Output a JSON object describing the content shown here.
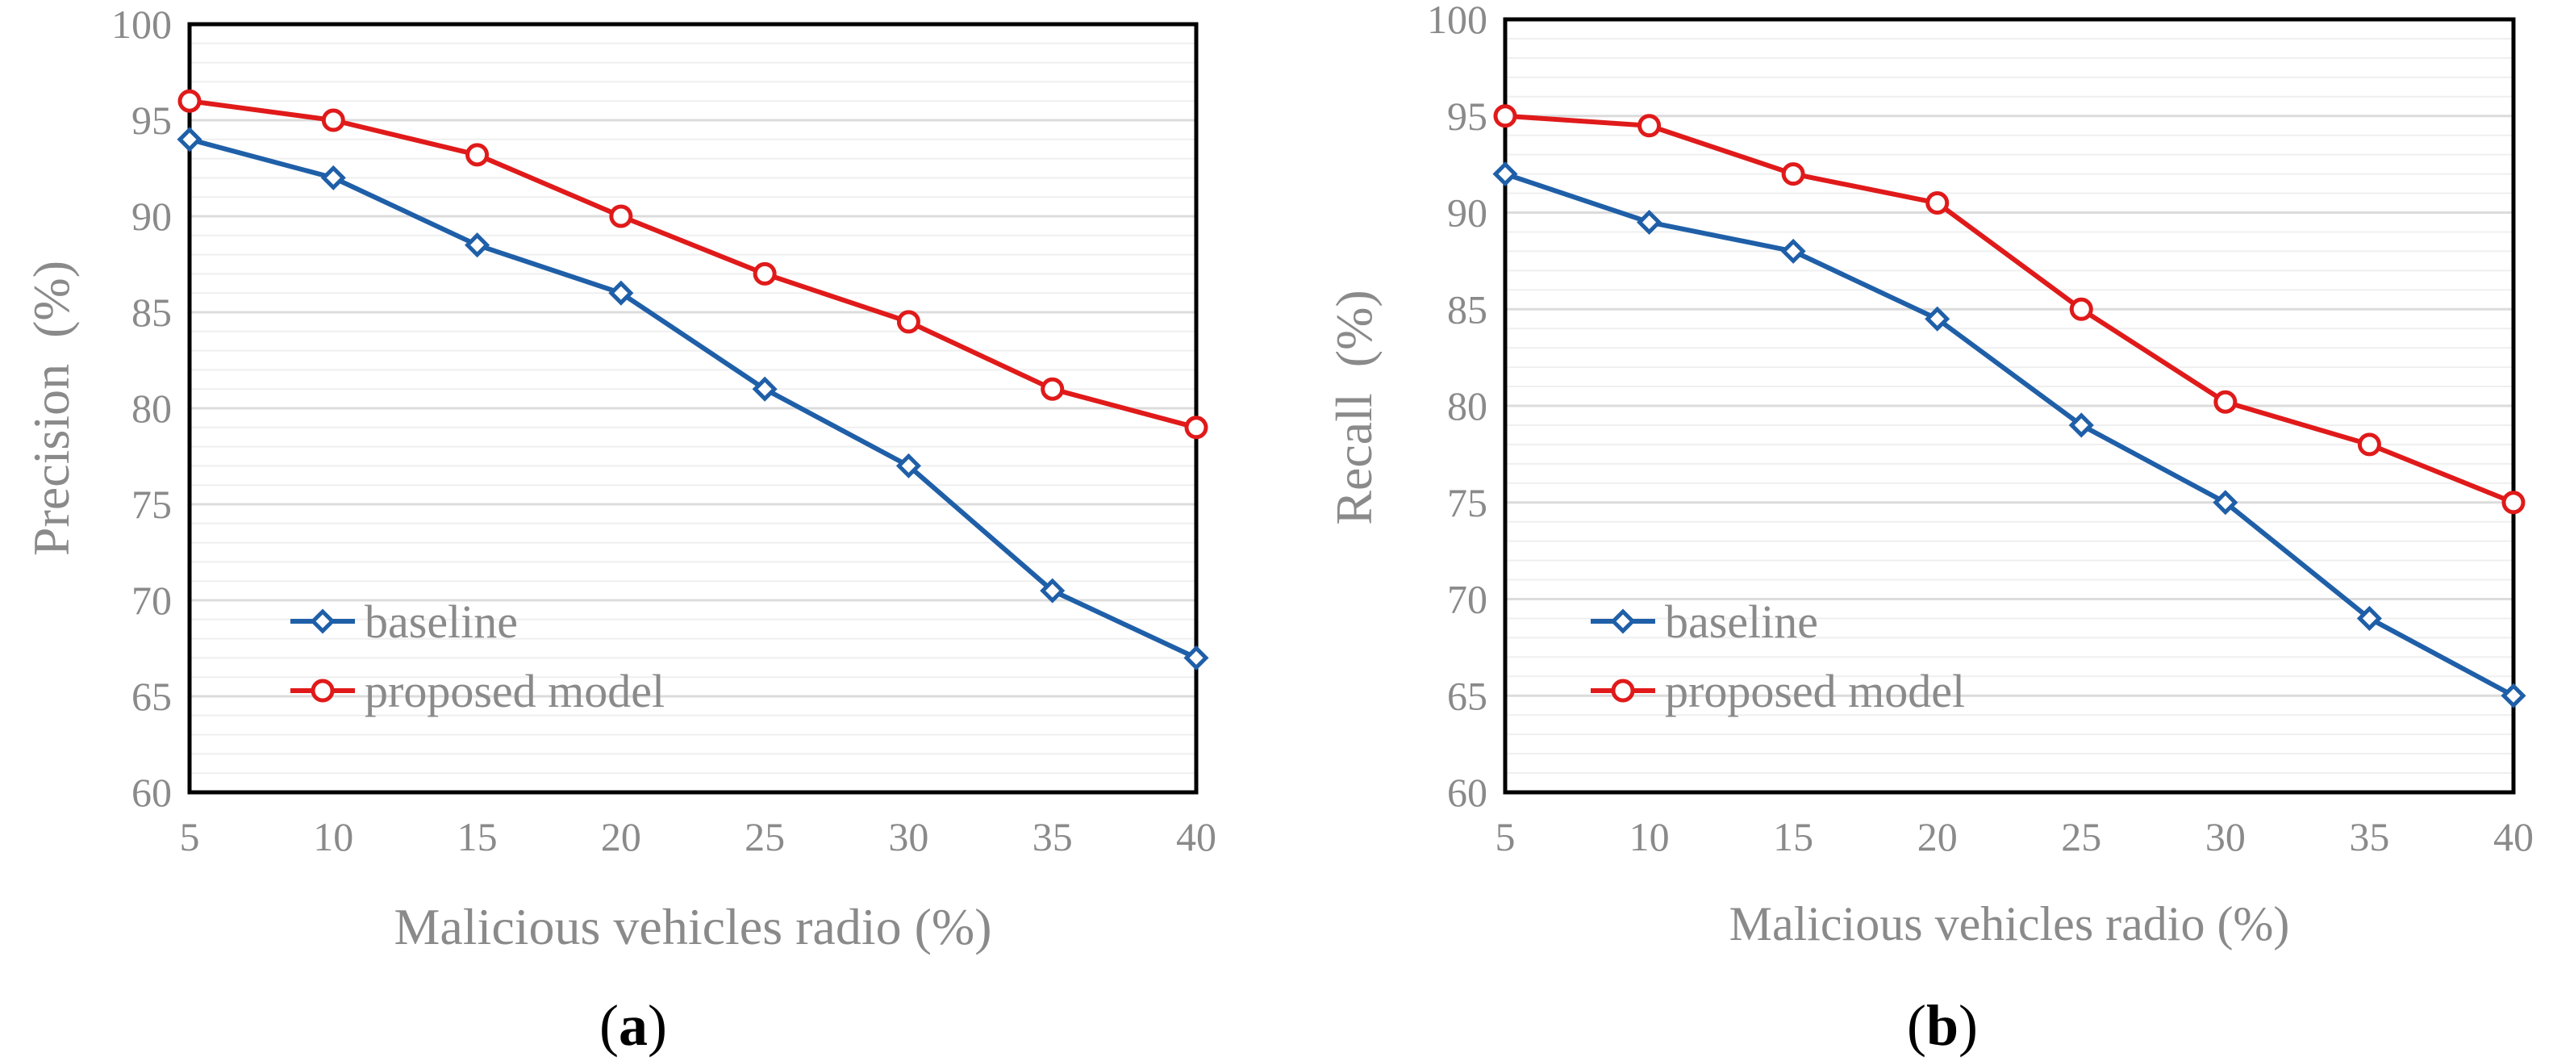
{
  "chart_data": [
    {
      "type": "line",
      "panel": "a",
      "x": [
        5,
        10,
        15,
        20,
        25,
        30,
        35,
        40
      ],
      "series": [
        {
          "name": "baseline",
          "values": [
            94,
            92,
            88.5,
            86,
            81,
            77,
            70.5,
            67
          ],
          "color": "#1f5fa8",
          "marker": "diamond"
        },
        {
          "name": "proposed model",
          "values": [
            96,
            95,
            93.2,
            90,
            87,
            84.5,
            81,
            79
          ],
          "color": "#e01a1a",
          "marker": "circle"
        }
      ],
      "xlabel": "Malicious vehicles radio (%)",
      "ylabel": "Precision  (%)",
      "xlim": [
        5,
        40
      ],
      "ylim": [
        60,
        100
      ],
      "xticks": [
        "5",
        "10",
        "15",
        "20",
        "25",
        "30",
        "35",
        "40"
      ],
      "yticks": [
        "60",
        "65",
        "70",
        "75",
        "80",
        "85",
        "90",
        "95",
        "100"
      ],
      "grid": true,
      "legend": "lower-left",
      "caption_open": "(",
      "caption_letter": "a",
      "caption_close": ")"
    },
    {
      "type": "line",
      "panel": "b",
      "x": [
        5,
        10,
        15,
        20,
        25,
        30,
        35,
        40
      ],
      "series": [
        {
          "name": "baseline",
          "values": [
            92,
            89.5,
            88,
            84.5,
            79,
            75,
            69,
            65
          ],
          "color": "#1f5fa8",
          "marker": "diamond"
        },
        {
          "name": "proposed model",
          "values": [
            95,
            94.5,
            92,
            90.5,
            85,
            80.2,
            78,
            75
          ],
          "color": "#e01a1a",
          "marker": "circle"
        }
      ],
      "xlabel": "Malicious vehicles radio (%)",
      "ylabel": "Recall  (%)",
      "xlim": [
        5,
        40
      ],
      "ylim": [
        60,
        100
      ],
      "xticks": [
        "5",
        "10",
        "15",
        "20",
        "25",
        "30",
        "35",
        "40"
      ],
      "yticks": [
        "60",
        "65",
        "70",
        "75",
        "80",
        "85",
        "90",
        "95",
        "100"
      ],
      "grid": true,
      "legend": "lower-left",
      "caption_open": "(",
      "caption_letter": "b",
      "caption_close": ")"
    }
  ]
}
